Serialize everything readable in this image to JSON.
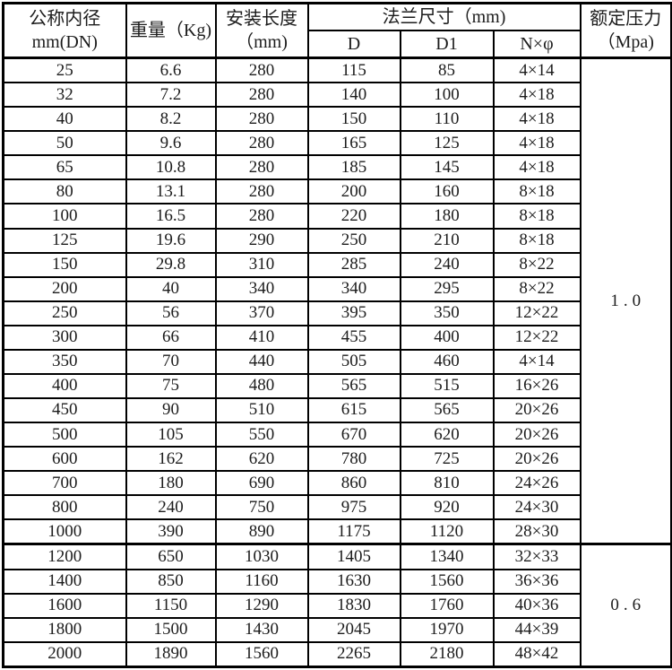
{
  "table": {
    "header": {
      "col_dn_line1": "公称内径",
      "col_dn_line2": "mm(DN)",
      "col_weight": "重量（Kg)",
      "col_length_line1": "安装长度",
      "col_length_line2": "（mm)",
      "col_flange": "法兰尺寸（mm)",
      "col_d": "D",
      "col_d1": "D1",
      "col_nphi": "N×φ",
      "col_pressure_line1": "额定压力",
      "col_pressure_line2": "（Mpa)"
    },
    "columns": [
      "公称内径 mm(DN)",
      "重量（Kg)",
      "安装长度（mm)",
      "D",
      "D1",
      "N×φ",
      "额定压力（Mpa)"
    ],
    "rows": [
      [
        "25",
        "6.6",
        "280",
        "115",
        "85",
        "4×14"
      ],
      [
        "32",
        "7.2",
        "280",
        "140",
        "100",
        "4×18"
      ],
      [
        "40",
        "8.2",
        "280",
        "150",
        "110",
        "4×18"
      ],
      [
        "50",
        "9.6",
        "280",
        "165",
        "125",
        "4×18"
      ],
      [
        "65",
        "10.8",
        "280",
        "185",
        "145",
        "4×18"
      ],
      [
        "80",
        "13.1",
        "280",
        "200",
        "160",
        "8×18"
      ],
      [
        "100",
        "16.5",
        "280",
        "220",
        "180",
        "8×18"
      ],
      [
        "125",
        "19.6",
        "290",
        "250",
        "210",
        "8×18"
      ],
      [
        "150",
        "29.8",
        "310",
        "285",
        "240",
        "8×22"
      ],
      [
        "200",
        "40",
        "340",
        "340",
        "295",
        "8×22"
      ],
      [
        "250",
        "56",
        "370",
        "395",
        "350",
        "12×22"
      ],
      [
        "300",
        "66",
        "410",
        "455",
        "400",
        "12×22"
      ],
      [
        "350",
        "70",
        "440",
        "505",
        "460",
        "4×14"
      ],
      [
        "400",
        "75",
        "480",
        "565",
        "515",
        "16×26"
      ],
      [
        "450",
        "90",
        "510",
        "615",
        "565",
        "20×26"
      ],
      [
        "500",
        "105",
        "550",
        "670",
        "620",
        "20×26"
      ],
      [
        "600",
        "162",
        "620",
        "780",
        "725",
        "20×26"
      ],
      [
        "700",
        "180",
        "690",
        "860",
        "810",
        "24×26"
      ],
      [
        "800",
        "240",
        "750",
        "975",
        "920",
        "24×30"
      ],
      [
        "1000",
        "390",
        "890",
        "1175",
        "1120",
        "28×30"
      ],
      [
        "1200",
        "650",
        "1030",
        "1405",
        "1340",
        "32×33"
      ],
      [
        "1400",
        "850",
        "1160",
        "1630",
        "1560",
        "36×36"
      ],
      [
        "1600",
        "1150",
        "1290",
        "1830",
        "1760",
        "40×36"
      ],
      [
        "1800",
        "1500",
        "1430",
        "2045",
        "1970",
        "44×39"
      ],
      [
        "2000",
        "1890",
        "1560",
        "2265",
        "2180",
        "48×42"
      ]
    ],
    "pressure_sections": [
      {
        "value": "1.0",
        "row_start": 0,
        "row_span": 20
      },
      {
        "value": "0.6",
        "row_start": 20,
        "row_span": 5
      }
    ]
  },
  "colors": {
    "border": "#000000",
    "text": "#1c1c1c",
    "background": "#ffffff"
  }
}
